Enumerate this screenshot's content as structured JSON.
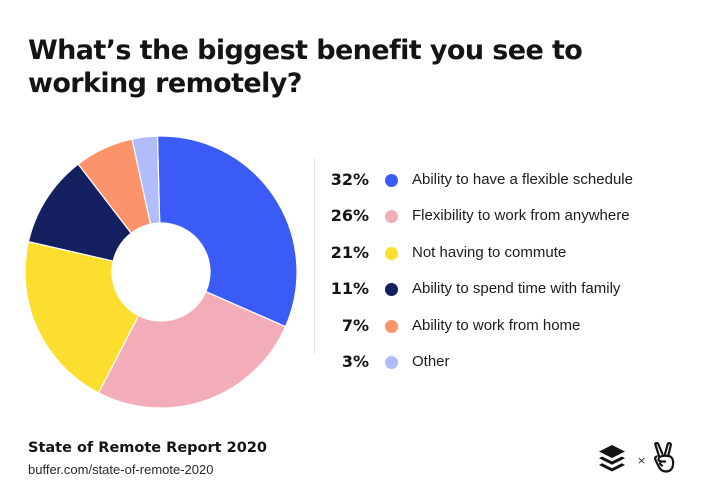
{
  "header": {
    "title_line1": "What’s the biggest benefit you see to",
    "title_line2": "working remotely?"
  },
  "chart_data": {
    "type": "pie",
    "variant": "donut",
    "title": "What’s the biggest benefit you see to working remotely?",
    "slices": [
      {
        "label": "Ability to have a flexible schedule",
        "pct_label": "32%",
        "value": 32,
        "color": "#3b5bf6"
      },
      {
        "label": "Flexibility to work from anywhere",
        "pct_label": "26%",
        "value": 26,
        "color": "#f2adb9"
      },
      {
        "label": "Not having to commute",
        "pct_label": "21%",
        "value": 21,
        "color": "#fbde2e"
      },
      {
        "label": "Ability to spend time with family",
        "pct_label": "11%",
        "value": 11,
        "color": "#131f5e"
      },
      {
        "label": "Ability to work from home",
        "pct_label": "7%",
        "value": 7,
        "color": "#fd936b"
      },
      {
        "label": "Other",
        "pct_label": "3%",
        "value": 3,
        "color": "#b3bcfb"
      }
    ],
    "legend_position": "right"
  },
  "footer": {
    "title": "State of Remote Report 2020",
    "url": "buffer.com/state-of-remote-2020",
    "times_glyph": "×",
    "logos": [
      "buffer-layers-icon",
      "angellist-peace-hand-icon"
    ]
  }
}
